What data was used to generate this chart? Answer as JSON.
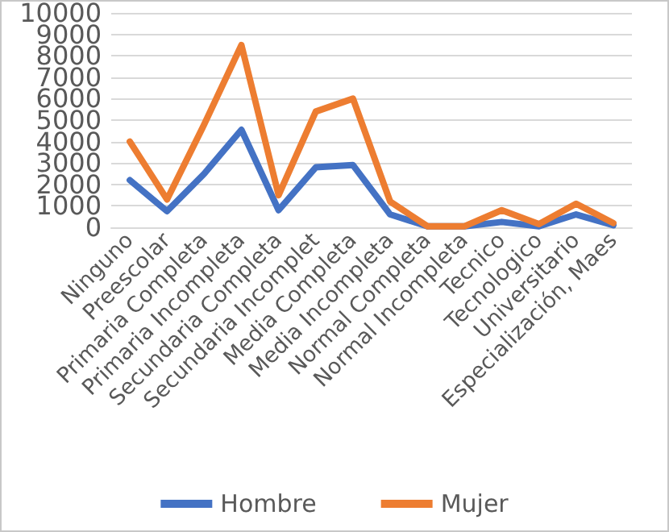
{
  "chart_data": {
    "type": "line",
    "categories": [
      "Ninguno",
      "Preescolar",
      "Primaria Completa",
      "Primaria Incompleta",
      "Secundaria Completa",
      "Secundaria Incomplet",
      "Media Completa",
      "Media Incompleta",
      "Normal Completa",
      "Normal Incompleta",
      "Tecnico",
      "Tecnologico",
      "Universitario",
      "Especialización, Maes"
    ],
    "series": [
      {
        "name": "Hombre",
        "color": "#4472c4",
        "values": [
          2200,
          750,
          2500,
          4550,
          800,
          2800,
          2900,
          600,
          50,
          50,
          250,
          50,
          600,
          100
        ]
      },
      {
        "name": "Mujer",
        "color": "#ed7d31",
        "values": [
          4000,
          1300,
          4800,
          8500,
          1500,
          5400,
          6000,
          1200,
          50,
          50,
          800,
          150,
          1100,
          200
        ]
      }
    ],
    "ylim": [
      0,
      10000
    ],
    "yticks": [
      0,
      1000,
      2000,
      3000,
      4000,
      5000,
      6000,
      7000,
      8000,
      9000,
      10000
    ],
    "grid": "y",
    "legend": "bottom",
    "marker": "none",
    "line_style": "solid"
  }
}
